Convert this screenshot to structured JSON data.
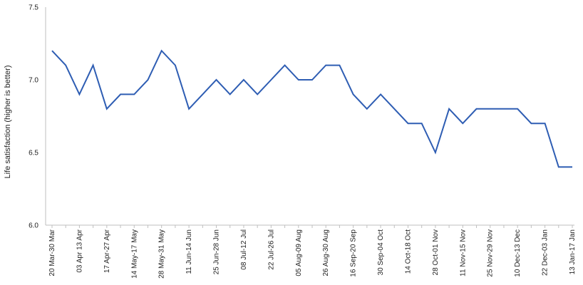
{
  "chart_data": {
    "type": "line",
    "title": "",
    "xlabel": "",
    "ylabel": "Life satisfaction (higher is better)",
    "ylim": [
      6.0,
      7.5
    ],
    "yticks": [
      "6.0",
      "6.5",
      "7.0",
      "7.5"
    ],
    "grid": false,
    "legend": "none",
    "line_color": "#2e5db3",
    "x_tick_labels": [
      {
        "index": 0,
        "label": "20 Mar-30 Mar"
      },
      {
        "index": 2,
        "label": "03 Apr 13 Apr"
      },
      {
        "index": 4,
        "label": "17 Apr-27 Apr"
      },
      {
        "index": 6,
        "label": "14 May-17 May"
      },
      {
        "index": 8,
        "label": "28 May-31 May"
      },
      {
        "index": 10,
        "label": "11 Jun-14 Jun"
      },
      {
        "index": 12,
        "label": "25 Jun-28 Jun"
      },
      {
        "index": 14,
        "label": "08 Jul-12 Jul"
      },
      {
        "index": 16,
        "label": "22 Jul-26 Jul"
      },
      {
        "index": 18,
        "label": "05 Aug-09 Aug"
      },
      {
        "index": 20,
        "label": "26 Aug-30 Aug"
      },
      {
        "index": 22,
        "label": "16 Sep-20 Sep"
      },
      {
        "index": 24,
        "label": "30 Sep-04 Oct"
      },
      {
        "index": 26,
        "label": "14 Oct-18 Oct"
      },
      {
        "index": 28,
        "label": "28 Oct-01 Nov"
      },
      {
        "index": 30,
        "label": "11 Nov-15 Nov"
      },
      {
        "index": 32,
        "label": "25 Nov-29 Nov"
      },
      {
        "index": 34,
        "label": "10 Dec-13 Dec"
      },
      {
        "index": 36,
        "label": "22 Dec-03 Jan"
      },
      {
        "index": 38,
        "label": "13 Jan-17 Jan"
      }
    ],
    "series": [
      {
        "values": [
          7.2,
          7.1,
          6.9,
          7.1,
          6.8,
          6.9,
          6.9,
          7.0,
          7.2,
          7.1,
          6.8,
          6.9,
          7.0,
          6.9,
          7.0,
          6.9,
          7.0,
          7.1,
          7.0,
          7.0,
          7.1,
          7.1,
          6.9,
          6.8,
          6.9,
          6.8,
          6.7,
          6.7,
          6.5,
          6.8,
          6.7,
          6.8,
          6.8,
          6.8,
          6.8,
          6.7,
          6.7,
          6.4,
          6.4
        ]
      }
    ]
  }
}
